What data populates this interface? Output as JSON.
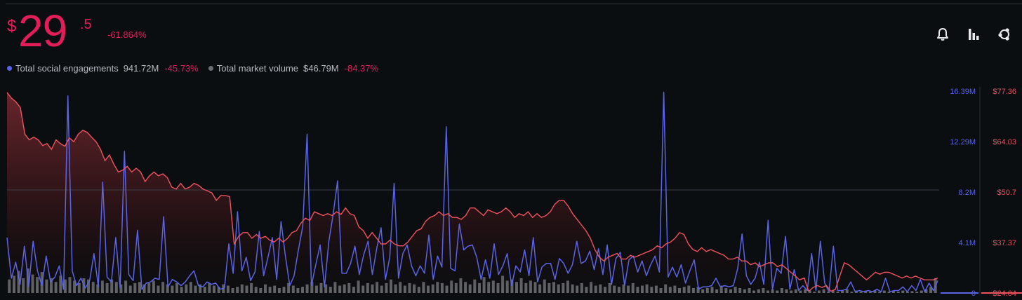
{
  "header": {
    "price_currency": "$",
    "price_int": "29",
    "price_dec": ".5",
    "price_change": "-61.864%"
  },
  "legend": {
    "social": {
      "label": "Total social engagements",
      "value": "941.72M",
      "change": "-45.73%",
      "color": "#5b63e6"
    },
    "volume": {
      "label": "Total market volume",
      "value": "$46.79M",
      "change": "-84.37%",
      "color": "#6b6f75"
    }
  },
  "toolbar": {
    "icons": [
      "bell-icon",
      "bar-chart-icon",
      "share-icon"
    ]
  },
  "colors": {
    "price": "#f0525f",
    "social": "#5b63e6",
    "volume": "#8a8e93",
    "accent": "#e11d5a"
  },
  "chart_data": {
    "type": "line",
    "grid": "single horizontal line at 8.2M",
    "y_social_ticks": [
      "0",
      "4.1M",
      "8.2M",
      "12.29M",
      "16.39M"
    ],
    "y_social_range": [
      0,
      16390000
    ],
    "y_price_ticks": [
      "$24.04",
      "$37.37",
      "$50.7",
      "$64.03",
      "$77.36"
    ],
    "y_price_range": [
      24.04,
      77.36
    ],
    "series": [
      {
        "name": "Price",
        "axis": "right",
        "style": "area",
        "values": [
          77.0,
          75.5,
          74.5,
          73.0,
          66.0,
          64.5,
          65.2,
          64.5,
          63.0,
          63.5,
          62.0,
          64.5,
          63.5,
          62.8,
          65.0,
          64.0,
          66.0,
          67.0,
          66.5,
          65.2,
          64.0,
          62.0,
          59.0,
          60.5,
          58.0,
          56.0,
          56.5,
          57.5,
          56.0,
          57.0,
          56.0,
          53.5,
          55.0,
          56.0,
          55.0,
          55.5,
          54.5,
          52.0,
          51.5,
          53.0,
          51.5,
          52.0,
          53.0,
          52.5,
          51.5,
          51.0,
          50.5,
          48.5,
          49.8,
          49.8,
          49.5,
          37.0,
          39.0,
          40.0,
          40.0,
          38.5,
          39.5,
          38.5,
          39.0,
          38.0,
          37.5,
          38.5,
          37.5,
          38.5,
          40.0,
          40.5,
          42.5,
          43.8,
          43.2,
          45.5,
          45.0,
          44.5,
          45.0,
          44.5,
          45.5,
          44.8,
          46.5,
          45.0,
          44.5,
          41.5,
          40.5,
          38.5,
          40.0,
          38.5,
          37.0,
          37.0,
          38.0,
          37.0,
          36.5,
          36.5,
          37.5,
          39.0,
          40.5,
          41.0,
          43.0,
          44.0,
          44.5,
          45.5,
          44.5,
          45.0,
          44.0,
          44.0,
          43.5,
          44.5,
          46.5,
          46.5,
          45.5,
          44.5,
          46.0,
          45.5,
          45.0,
          45.5,
          46.5,
          45.5,
          44.0,
          45.0,
          44.5,
          45.5,
          44.0,
          45.0,
          44.0,
          44.5,
          45.5,
          47.5,
          48.5,
          48.5,
          47.0,
          45.0,
          43.5,
          42.0,
          40.5,
          38.5,
          35.5,
          33.5,
          32.5,
          33.5,
          34.0,
          34.5,
          33.0,
          33.0,
          34.0,
          33.5,
          34.0,
          34.5,
          35.0,
          35.5,
          36.5,
          36.0,
          37.0,
          37.5,
          38.5,
          40.0,
          39.5,
          37.0,
          35.5,
          35.0,
          36.0,
          35.0,
          35.5,
          35.0,
          34.5,
          34.0,
          33.0,
          33.0,
          33.5,
          32.5,
          32.5,
          31.5,
          32.0,
          31.0,
          31.5,
          32.0,
          32.0,
          31.0,
          31.5,
          30.5,
          29.5,
          28.5,
          27.5,
          28.0,
          24.5,
          25.5,
          26.0,
          25.5,
          26.0,
          24.5,
          25.0,
          28.5,
          32.0,
          31.5,
          30.5,
          29.5,
          28.5,
          27.5,
          28.5,
          29.5,
          29.0,
          29.5,
          29.5,
          29.0,
          28.5,
          28.0,
          28.5,
          28.0,
          28.5,
          28.0,
          27.5,
          27.5,
          27.5,
          28.0
        ]
      },
      {
        "name": "Total social engagements",
        "axis": "left",
        "style": "line",
        "values": [
          4500000,
          1200000,
          2500000,
          700000,
          3800000,
          500000,
          4200000,
          1800000,
          600000,
          3000000,
          900000,
          1300000,
          2200000,
          300000,
          16000000,
          1800000,
          600000,
          1200000,
          400000,
          1000000,
          3200000,
          500000,
          9000000,
          1300000,
          900000,
          4500000,
          400000,
          11500000,
          1500000,
          1000000,
          5100000,
          300000,
          800000,
          900000,
          1200000,
          1100000,
          6200000,
          500000,
          1100000,
          900000,
          600000,
          900000,
          1400000,
          1800000,
          600000,
          500000,
          900000,
          700000,
          800000,
          300000,
          400000,
          4000000,
          1600000,
          6600000,
          1800000,
          2900000,
          1000000,
          1700000,
          5000000,
          1400000,
          2900000,
          4500000,
          1100000,
          5800000,
          3000000,
          600000,
          1400000,
          3500000,
          5400000,
          12900000,
          600000,
          2300000,
          3900000,
          500000,
          4200000,
          6400000,
          9100000,
          1600000,
          1600000,
          2400000,
          3800000,
          1500000,
          3100000,
          4200000,
          1500000,
          3600000,
          5300000,
          1100000,
          2900000,
          8900000,
          1200000,
          3200000,
          3900000,
          2200000,
          1400000,
          2200000,
          1600000,
          4700000,
          1100000,
          3000000,
          2100000,
          13500000,
          2000000,
          1800000,
          5600000,
          3500000,
          3800000,
          3900000,
          2900000,
          1100000,
          2700000,
          1200000,
          4000000,
          1500000,
          2200000,
          3200000,
          600000,
          2200000,
          1700000,
          3500000,
          1400000,
          4500000,
          900000,
          2100000,
          2400000,
          2400000,
          1100000,
          2800000,
          2400000,
          1600000,
          2300000,
          4200000,
          2400000,
          2600000,
          3400000,
          1900000,
          3600000,
          1500000,
          3900000,
          700000,
          2800000,
          3300000,
          600000,
          2700000,
          3000000,
          1700000,
          2600000,
          1400000,
          2300000,
          3000000,
          1700000,
          16300000,
          1300000,
          2100000,
          1300000,
          2300000,
          800000,
          1800000,
          2700000,
          300000,
          500000,
          500000,
          600000,
          1200000,
          500000,
          600000,
          500000,
          600000,
          2000000,
          4800000,
          1400000,
          700000,
          1200000,
          2500000,
          700000,
          5900000,
          300000,
          2000000,
          1600000,
          4600000,
          300000,
          1900000,
          200000,
          600000,
          200000,
          3200000,
          200000,
          4200000,
          800000,
          100000,
          3800000,
          200000,
          200000,
          300000,
          900000,
          100000,
          200000,
          100000,
          200000,
          100000,
          300000,
          100000,
          1200000,
          100000,
          200000,
          200000,
          500000,
          100000,
          600000,
          200000,
          1100000,
          100000,
          800000,
          200000,
          1000000
        ]
      },
      {
        "name": "Total market volume",
        "axis": "left",
        "style": "bars",
        "values": [
          1100000,
          1400000,
          1800000,
          1200000,
          2000000,
          1500000,
          1300000,
          1700000,
          1100000,
          1200000,
          900000,
          1400000,
          1100000,
          1300000,
          1000000,
          800000,
          1200000,
          1100000,
          900000,
          700000,
          1000000,
          800000,
          1100000,
          900000,
          700000,
          1000000,
          600000,
          800000,
          900000,
          700000,
          800000,
          1000000,
          600000,
          900000,
          700000,
          600000,
          800000,
          500000,
          700000,
          900000,
          600000,
          700000,
          500000,
          800000,
          600000,
          500000,
          700000,
          600000,
          400000,
          500000,
          700000,
          600000,
          800000,
          500000,
          400000,
          700000,
          500000,
          600000,
          400000,
          500000,
          800000,
          600000,
          400000,
          500000,
          700000,
          900000,
          600000,
          800000,
          700000,
          500000,
          900000,
          600000,
          700000,
          800000,
          500000,
          1000000,
          600000,
          800000,
          700000,
          900000,
          600000,
          800000,
          1100000,
          700000,
          900000,
          600000,
          800000,
          700000,
          500000,
          900000,
          600000,
          700000,
          900000,
          800000,
          600000,
          1000000,
          800000,
          1200000,
          900000,
          700000,
          1100000,
          800000,
          1300000,
          900000,
          1000000,
          800000,
          1400000,
          1000000,
          1100000,
          900000,
          1200000,
          800000,
          1000000,
          900000,
          700000,
          1100000,
          800000,
          900000,
          700000,
          800000,
          1000000,
          700000,
          600000,
          800000,
          500000,
          900000,
          600000,
          700000,
          500000,
          800000,
          600000,
          500000,
          700000,
          600000,
          800000,
          500000,
          600000,
          700000,
          500000,
          600000,
          400000,
          700000,
          500000,
          600000,
          400000,
          500000,
          600000,
          400000,
          500000,
          300000,
          400000,
          500000,
          300000,
          600000,
          400000,
          300000,
          500000,
          400000,
          300000,
          400000,
          200000,
          300000,
          400000,
          200000,
          300000,
          200000,
          400000,
          300000,
          200000,
          300000,
          200000,
          300000,
          200000,
          100000,
          200000,
          300000,
          100000,
          200000,
          100000,
          200000,
          300000,
          100000,
          200000,
          100000,
          200000,
          100000,
          200000,
          100000,
          200000,
          100000,
          150000,
          100000,
          200000,
          100000,
          150000,
          100000,
          200000,
          300000,
          500000,
          1200000
        ]
      }
    ]
  }
}
